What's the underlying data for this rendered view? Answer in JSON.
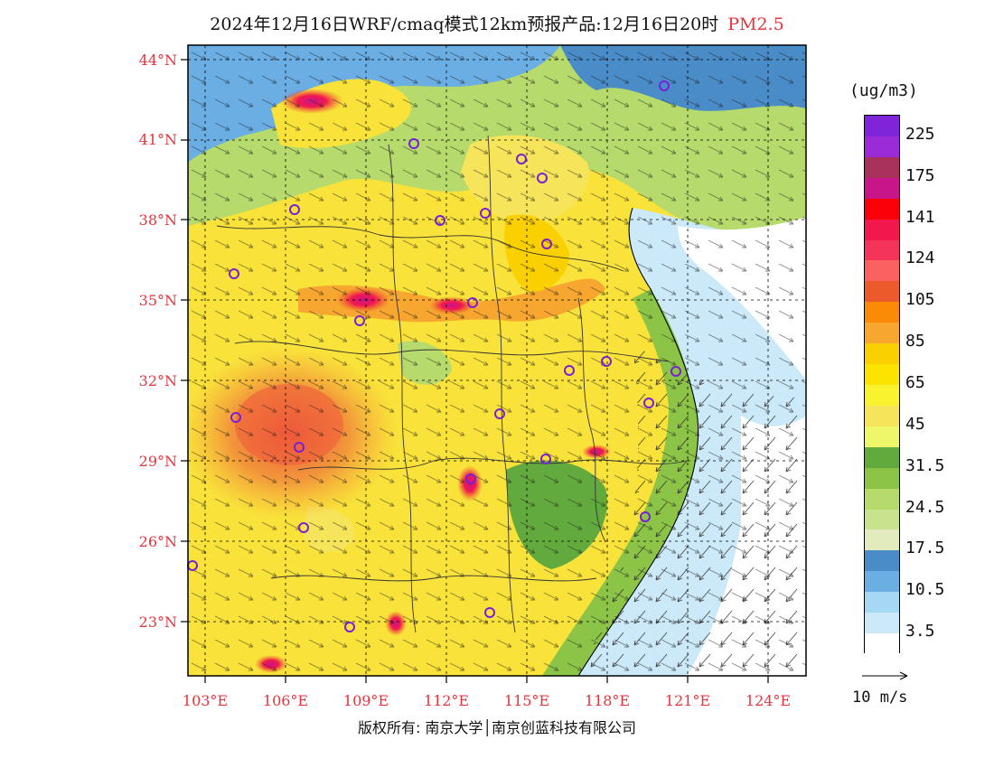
{
  "title": {
    "main": "2024年12月16日WRF/cmaq模式12km预报产品:12月16日20时",
    "variable": "PM2.5"
  },
  "colors": {
    "axis_label": "#e8333c",
    "city_marker": "#7a1fd6"
  },
  "map": {
    "lat_labels": [
      "44°N",
      "41°N",
      "38°N",
      "35°N",
      "32°N",
      "29°N",
      "26°N",
      "23°N"
    ],
    "lon_labels": [
      "103°E",
      "106°E",
      "109°E",
      "112°E",
      "115°E",
      "118°E",
      "121°E",
      "124°E"
    ]
  },
  "legend": {
    "unit": "(ug/m3)",
    "bins": [
      {
        "color": "#7f24d8",
        "label": "225"
      },
      {
        "color": "#9a2bd6",
        "label": ""
      },
      {
        "color": "#a8325c",
        "label": "175"
      },
      {
        "color": "#c8168a",
        "label": ""
      },
      {
        "color": "#fb0008",
        "label": "141"
      },
      {
        "color": "#f2184e",
        "label": ""
      },
      {
        "color": "#f5345a",
        "label": "124"
      },
      {
        "color": "#fa6262",
        "label": ""
      },
      {
        "color": "#ea5a2a",
        "label": "105"
      },
      {
        "color": "#fb8a06",
        "label": ""
      },
      {
        "color": "#f7a72f",
        "label": "85"
      },
      {
        "color": "#fbd000",
        "label": ""
      },
      {
        "color": "#fde300",
        "label": "65"
      },
      {
        "color": "#f9f22e",
        "label": ""
      },
      {
        "color": "#f6e45a",
        "label": "45"
      },
      {
        "color": "#eef66a",
        "label": ""
      },
      {
        "color": "#62a93e",
        "label": "31.5"
      },
      {
        "color": "#8cc447",
        "label": ""
      },
      {
        "color": "#b6da6b",
        "label": "24.5"
      },
      {
        "color": "#c8e28e",
        "label": ""
      },
      {
        "color": "#e1ebbd",
        "label": "17.5"
      },
      {
        "color": "#4a8cc8",
        "label": ""
      },
      {
        "color": "#6aaee3",
        "label": "10.5"
      },
      {
        "color": "#a6d8f4",
        "label": ""
      },
      {
        "color": "#cbe9f9",
        "label": "3.5"
      },
      {
        "color": "#ffffff",
        "label": ""
      }
    ]
  },
  "wind_reference": {
    "label": "10 m/s"
  },
  "copyright": "版权所有: 南京大学│南京创蓝科技有限公司"
}
